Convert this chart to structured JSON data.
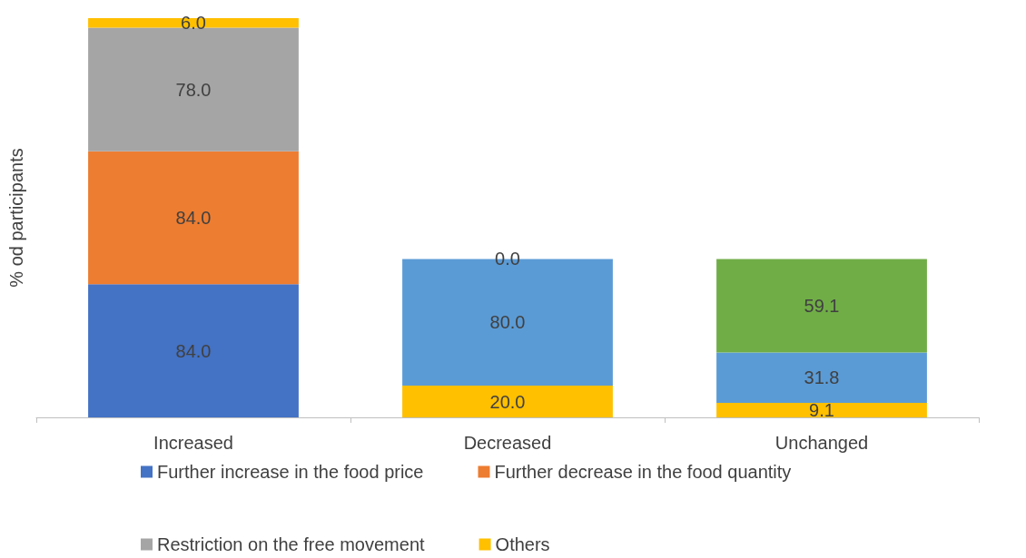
{
  "chart_data": {
    "type": "bar",
    "stacked": true,
    "ylabel": "% od participants",
    "categories": [
      "Increased",
      "Decreased",
      "Unchanged"
    ],
    "ylim": [
      0,
      252
    ],
    "tick_labels": "x",
    "grid": false,
    "legend": "bottom",
    "series": [
      {
        "name": "Further increase in the food price",
        "color": "#4472c4",
        "values": [
          84.0,
          null,
          null
        ],
        "value_labels": [
          "84.0",
          null,
          null
        ]
      },
      {
        "name": "Further decrease in the food quantity",
        "color": "#ed7d31",
        "values": [
          84.0,
          null,
          null
        ],
        "value_labels": [
          "84.0",
          null,
          null
        ]
      },
      {
        "name": "Restriction on the free movement",
        "color": "#a5a5a5",
        "values": [
          78.0,
          null,
          null
        ],
        "value_labels": [
          "78.0",
          null,
          null
        ]
      },
      {
        "name": "Others",
        "color": "#ffc000",
        "values": [
          6.0,
          null,
          null
        ],
        "value_labels": [
          "6.0",
          null,
          null
        ]
      },
      {
        "color": "#ffc000",
        "values": [
          null,
          20.0,
          9.1
        ],
        "value_labels": [
          null,
          "20.0",
          "9.1"
        ]
      },
      {
        "color": "#5b9bd5",
        "values": [
          null,
          80.0,
          31.8
        ],
        "value_labels": [
          null,
          "80.0",
          "31.8"
        ]
      },
      {
        "color": "#70ad47",
        "values": [
          null,
          0.0,
          59.1
        ],
        "value_labels": [
          null,
          "0.0",
          "59.1"
        ]
      }
    ]
  }
}
